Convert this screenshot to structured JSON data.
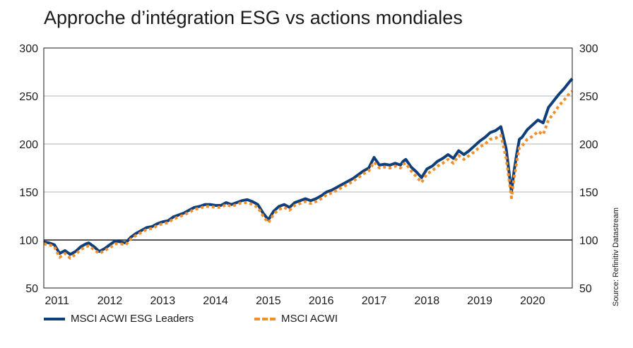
{
  "title": "Approche d’intégration ESG vs actions mondiales",
  "source": "Source: Refinitiv Datastream",
  "chart_data": {
    "type": "line",
    "title": "Approche d’intégration ESG vs actions mondiales",
    "xlabel": "",
    "ylabel": "",
    "ylim": [
      50,
      300
    ],
    "xlim": [
      2010.75,
      2020.75
    ],
    "yticks": [
      50,
      100,
      150,
      200,
      250,
      300
    ],
    "xtick_labels": [
      "2011",
      "2012",
      "2013",
      "2014",
      "2015",
      "2016",
      "2017",
      "2018",
      "2019",
      "2020"
    ],
    "grid": "horizontal",
    "reference_line": 100,
    "legend_position": "bottom-left",
    "series": [
      {
        "name": "MSCI ACWI ESG Leaders",
        "color": "#0f3f7a",
        "style": "solid",
        "x": [
          2010.75,
          2010.85,
          2010.95,
          2011.05,
          2011.15,
          2011.25,
          2011.35,
          2011.45,
          2011.55,
          2011.6,
          2011.7,
          2011.8,
          2011.9,
          2012.0,
          2012.1,
          2012.2,
          2012.3,
          2012.4,
          2012.5,
          2012.6,
          2012.7,
          2012.8,
          2012.9,
          2013.0,
          2013.1,
          2013.2,
          2013.3,
          2013.4,
          2013.5,
          2013.6,
          2013.7,
          2013.8,
          2013.9,
          2014.0,
          2014.1,
          2014.2,
          2014.3,
          2014.4,
          2014.5,
          2014.6,
          2014.7,
          2014.8,
          2014.9,
          2015.0,
          2015.1,
          2015.2,
          2015.3,
          2015.4,
          2015.5,
          2015.6,
          2015.7,
          2015.8,
          2015.9,
          2016.0,
          2016.1,
          2016.2,
          2016.3,
          2016.4,
          2016.5,
          2016.6,
          2016.7,
          2016.8,
          2016.9,
          2017.0,
          2017.1,
          2017.2,
          2017.3,
          2017.4,
          2017.5,
          2017.55,
          2017.6,
          2017.7,
          2017.8,
          2017.9,
          2018.0,
          2018.1,
          2018.2,
          2018.3,
          2018.4,
          2018.5,
          2018.6,
          2018.7,
          2018.8,
          2018.9,
          2019.0,
          2019.1,
          2019.2,
          2019.3,
          2019.4,
          2019.5,
          2019.6,
          2019.65,
          2019.7,
          2019.75,
          2019.8,
          2019.9,
          2020.0,
          2020.1,
          2020.2,
          2020.3,
          2020.4,
          2020.5,
          2020.6,
          2020.7,
          2020.75
        ],
        "y": [
          98,
          97,
          95,
          86,
          89,
          85,
          88,
          93,
          96,
          97,
          93,
          88,
          91,
          95,
          99,
          98,
          97,
          103,
          107,
          110,
          113,
          114,
          117,
          119,
          120,
          124,
          126,
          128,
          131,
          134,
          135,
          137,
          137,
          136,
          136,
          139,
          137,
          139,
          141,
          142,
          140,
          137,
          128,
          121,
          130,
          135,
          137,
          134,
          139,
          141,
          143,
          141,
          143,
          146,
          150,
          152,
          155,
          158,
          161,
          164,
          168,
          172,
          175,
          186,
          178,
          179,
          178,
          180,
          178,
          182,
          184,
          176,
          171,
          165,
          174,
          177,
          182,
          185,
          189,
          185,
          193,
          189,
          193,
          198,
          203,
          207,
          212,
          214,
          218,
          195,
          150,
          172,
          190,
          205,
          207,
          215,
          220,
          225,
          222,
          238,
          245,
          252,
          258,
          265,
          268
        ],
        "x_note": "",
        "y_note": ""
      },
      {
        "name": "MSCI ACWI",
        "color": "#f18f2c",
        "style": "dotted",
        "x": [
          2010.75,
          2010.85,
          2010.95,
          2011.05,
          2011.15,
          2011.25,
          2011.35,
          2011.45,
          2011.55,
          2011.6,
          2011.7,
          2011.8,
          2011.9,
          2012.0,
          2012.1,
          2012.2,
          2012.3,
          2012.4,
          2012.5,
          2012.6,
          2012.7,
          2012.8,
          2012.9,
          2013.0,
          2013.1,
          2013.2,
          2013.3,
          2013.4,
          2013.5,
          2013.6,
          2013.7,
          2013.8,
          2013.9,
          2014.0,
          2014.1,
          2014.2,
          2014.3,
          2014.4,
          2014.5,
          2014.6,
          2014.7,
          2014.8,
          2014.9,
          2015.0,
          2015.1,
          2015.2,
          2015.3,
          2015.4,
          2015.5,
          2015.6,
          2015.7,
          2015.8,
          2015.9,
          2016.0,
          2016.1,
          2016.2,
          2016.3,
          2016.4,
          2016.5,
          2016.6,
          2016.7,
          2016.8,
          2016.9,
          2017.0,
          2017.1,
          2017.2,
          2017.3,
          2017.4,
          2017.5,
          2017.55,
          2017.6,
          2017.7,
          2017.8,
          2017.9,
          2018.0,
          2018.1,
          2018.2,
          2018.3,
          2018.4,
          2018.5,
          2018.6,
          2018.7,
          2018.8,
          2018.9,
          2019.0,
          2019.1,
          2019.2,
          2019.3,
          2019.4,
          2019.5,
          2019.6,
          2019.65,
          2019.7,
          2019.75,
          2019.8,
          2019.9,
          2020.0,
          2020.1,
          2020.2,
          2020.3,
          2020.4,
          2020.5,
          2020.6,
          2020.7,
          2020.75
        ],
        "y": [
          96,
          95,
          93,
          82,
          86,
          81,
          85,
          90,
          93,
          94,
          90,
          86,
          89,
          92,
          96,
          96,
          95,
          101,
          105,
          108,
          111,
          112,
          115,
          117,
          118,
          122,
          124,
          126,
          129,
          132,
          133,
          135,
          135,
          134,
          134,
          137,
          135,
          137,
          139,
          139,
          137,
          134,
          125,
          118,
          127,
          132,
          134,
          131,
          136,
          138,
          140,
          138,
          140,
          143,
          147,
          149,
          152,
          155,
          158,
          161,
          165,
          169,
          172,
          181,
          175,
          176,
          175,
          177,
          175,
          179,
          180,
          172,
          166,
          160,
          169,
          172,
          177,
          180,
          184,
          180,
          188,
          184,
          188,
          192,
          197,
          200,
          205,
          206,
          209,
          185,
          144,
          165,
          182,
          196,
          198,
          205,
          208,
          213,
          210,
          225,
          232,
          240,
          246,
          253,
          255
        ],
        "x_note": "",
        "y_note": ""
      }
    ]
  }
}
